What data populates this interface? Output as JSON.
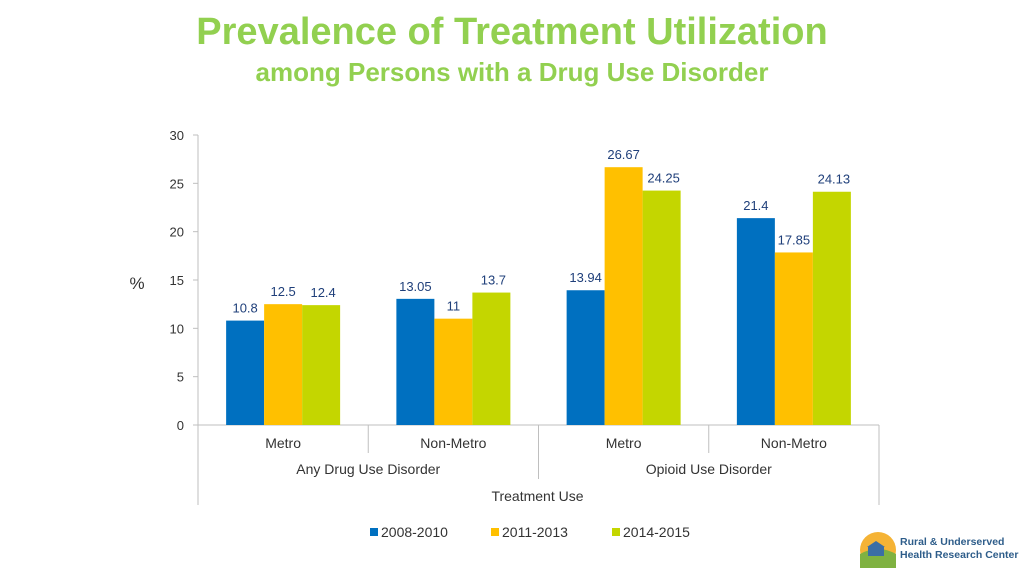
{
  "title": "Prevalence of Treatment Utilization",
  "subtitle": "among Persons with a Drug Use Disorder",
  "colors": {
    "title": "#92d050",
    "series": [
      "#0070c0",
      "#ffc000",
      "#c4d600"
    ],
    "label": "#1f3f7a"
  },
  "chart_data": {
    "type": "bar",
    "title": "Prevalence of Treatment Utilization among Persons with a Drug Use Disorder",
    "ylabel": "%",
    "xlabel": "Treatment Use",
    "ylim": [
      0,
      30
    ],
    "yticks": [
      0,
      5,
      10,
      15,
      20,
      25,
      30
    ],
    "categories": [
      "Metro",
      "Non-Metro",
      "Metro",
      "Non-Metro"
    ],
    "groups": [
      {
        "label": "Any Drug Use Disorder",
        "span": 2
      },
      {
        "label": "Opioid Use Disorder",
        "span": 2
      }
    ],
    "series": [
      {
        "name": "2008-2010",
        "values": [
          10.8,
          13.05,
          13.94,
          21.4
        ],
        "labels": [
          "10.8",
          "13.05",
          "13.94",
          "21.4"
        ]
      },
      {
        "name": "2011-2013",
        "values": [
          12.5,
          11,
          26.67,
          17.85
        ],
        "labels": [
          "12.5",
          "11",
          "26.67",
          "17.85"
        ]
      },
      {
        "name": "2014-2015",
        "values": [
          12.4,
          13.7,
          24.25,
          24.13
        ],
        "labels": [
          "12.4",
          "13.7",
          "24.25",
          "24.13"
        ]
      }
    ],
    "legend": "bottom-center"
  },
  "logo": {
    "line1": "Rural & Underserved",
    "line2": "Health Research Center"
  }
}
